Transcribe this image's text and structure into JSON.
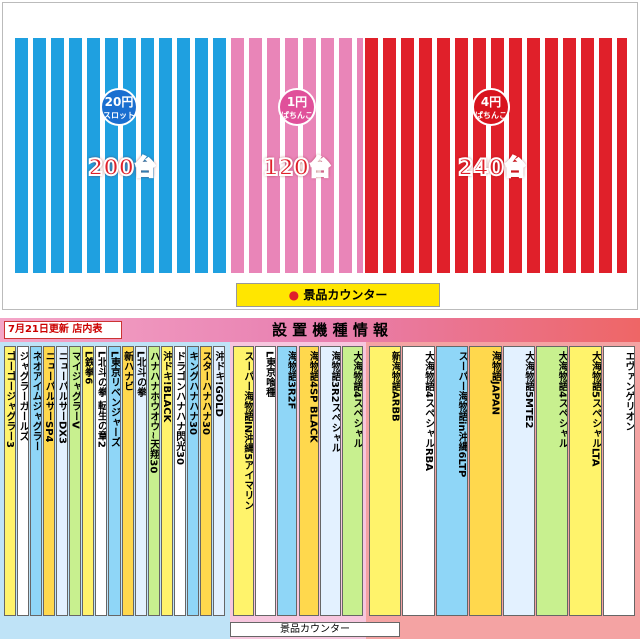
{
  "top": {
    "sections": [
      {
        "rate": "20円",
        "kind": "スロット",
        "count": "200",
        "unit": "台"
      },
      {
        "rate": "1円",
        "kind": "ぱちんこ",
        "count": "120",
        "unit": "台"
      },
      {
        "rate": "4円",
        "kind": "ぱちんこ",
        "count": "240",
        "unit": "台"
      }
    ],
    "counter": "景品カウンター"
  },
  "floor": {
    "update": "7月21日更新 店内表",
    "title": "設 置 機 種 情 報",
    "counter": "景品カウンター",
    "slot": [
      "ゴーゴージャグラー3",
      "ジャグラーガールズ",
      "ネオアイムジャグラー",
      "ニューパルサーSP4",
      "ニューパルサーDX3",
      "マイジャグラーV",
      "L鉄拳6",
      "L北斗の拳 転生の章2",
      "L東京リベンジャーズ",
      "新ハナビ",
      "L北斗の拳",
      "ハナハナホウオウ~天翔30",
      "沖ドキ!BLACK",
      "ドラゴンハナハナ閃光30",
      "キングハナハナ30",
      "スターハナハナ30",
      "沖ドキ!GOLD"
    ],
    "pachinko1": [
      "スーパー海物語IN沖縄5アイマリン",
      "L東京喰種",
      "海物語3R2F",
      "海物語4SP BLACK",
      "海物語3R2スペシャル",
      "大海物語4スペシャル"
    ],
    "pachinko4": [
      "新海物語ARBB",
      "大海物語4スペシャルRBA",
      "スーパー海物語in沖縄6LTP",
      "海物語JAPAN",
      "大海物語5MTE2",
      "大海物語4スペシャル",
      "大海物語5スペシャルLTA",
      "エヴァンゲリオン"
    ]
  }
}
